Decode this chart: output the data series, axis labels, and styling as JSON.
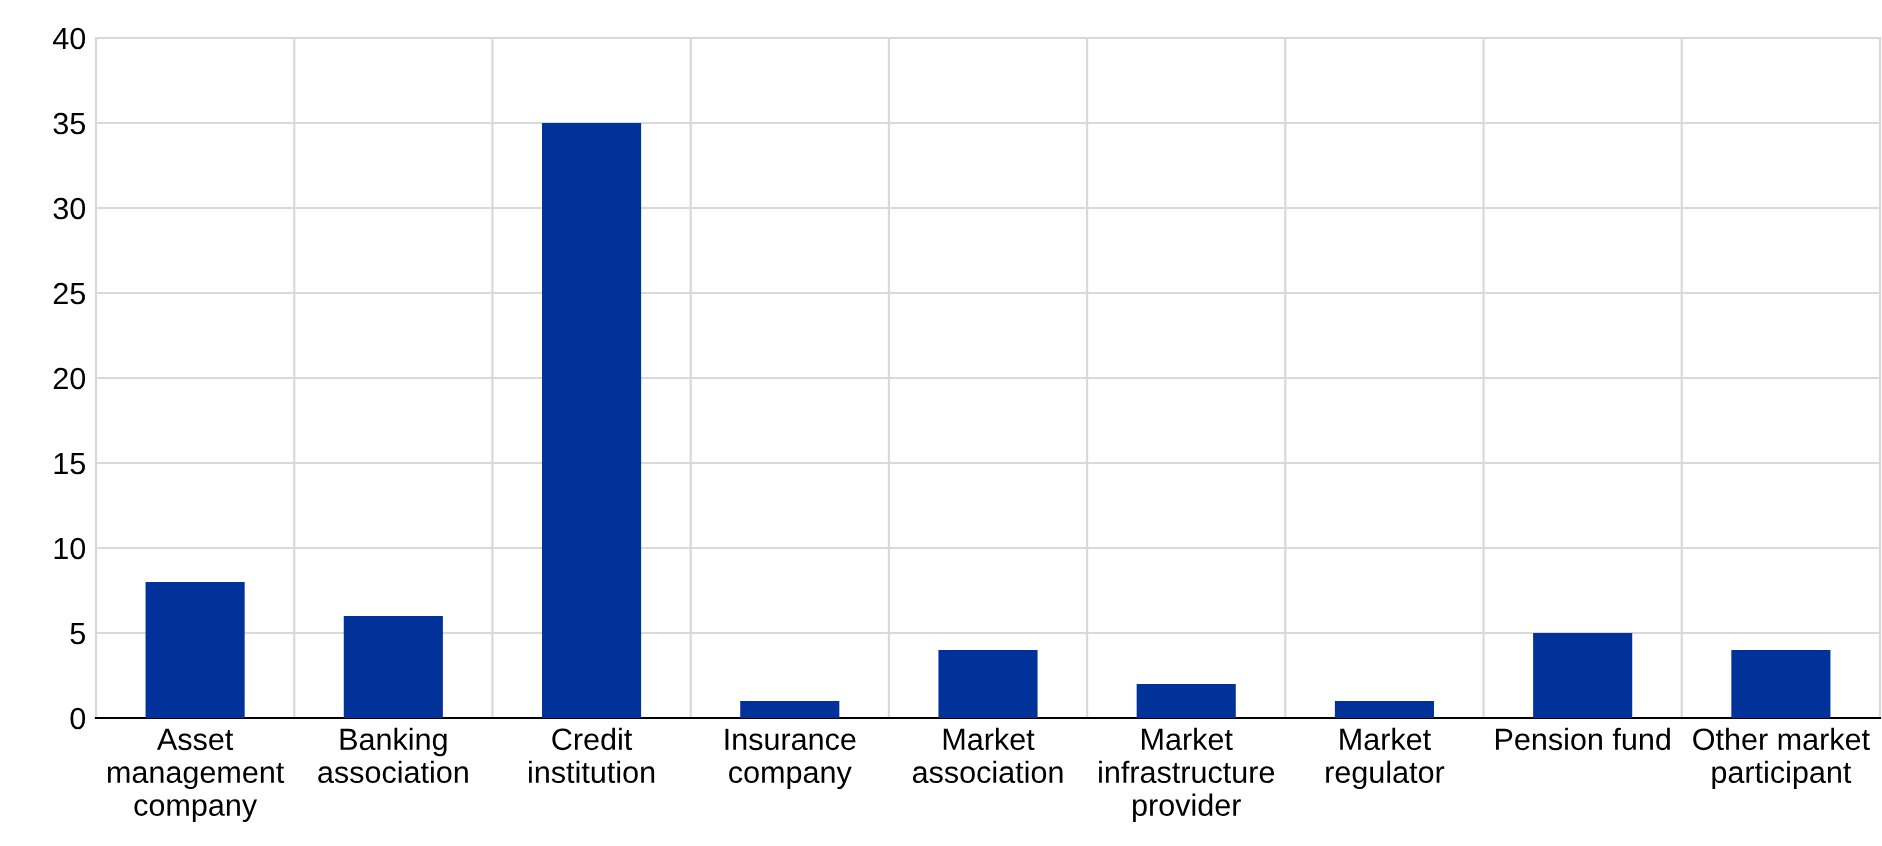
{
  "chart_data": {
    "type": "bar",
    "categories": [
      "Asset\nmanagement\ncompany",
      "Banking\nassociation",
      "Credit\ninstitution",
      "Insurance\ncompany",
      "Market\nassociation",
      "Market\ninfrastructure\nprovider",
      "Market\nregulator",
      "Pension fund",
      "Other market\nparticipant"
    ],
    "values": [
      8,
      6,
      35,
      1,
      4,
      2,
      1,
      5,
      4
    ],
    "color": "#003299",
    "ylim": [
      0,
      40
    ],
    "yticks": [
      0,
      5,
      10,
      15,
      20,
      25,
      30,
      35,
      40
    ],
    "grid": true
  }
}
